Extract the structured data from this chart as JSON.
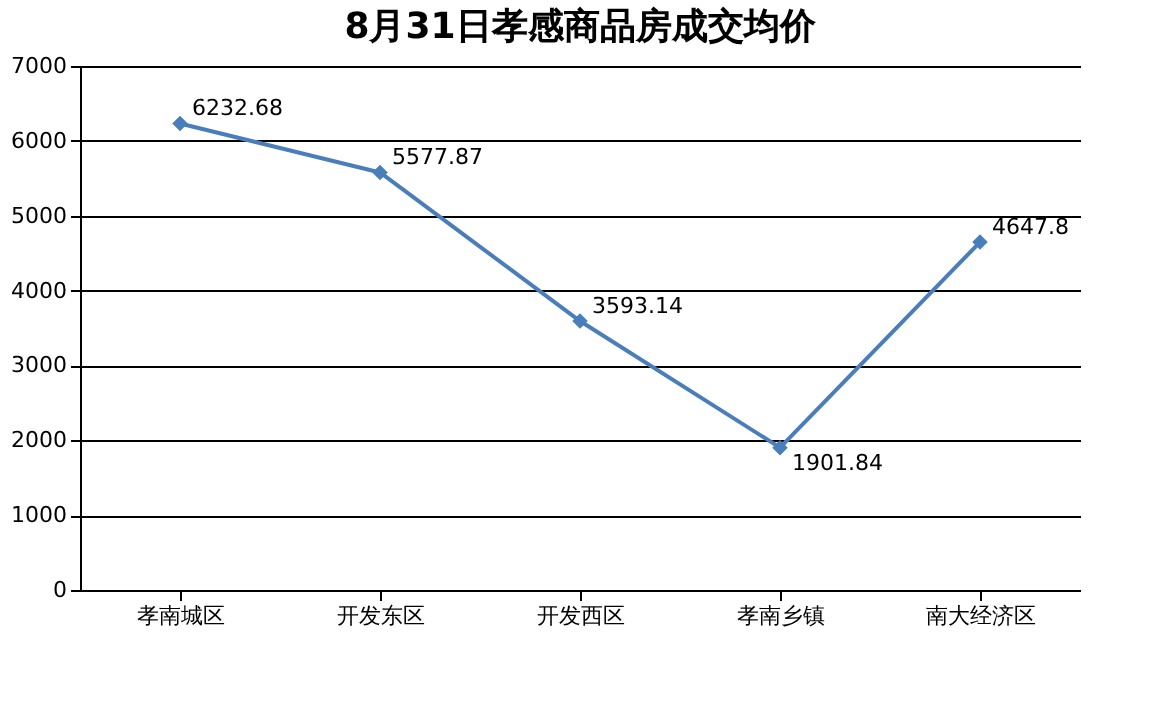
{
  "chart_data": {
    "type": "line",
    "title": "8月31日孝感商品房成交均价",
    "categories": [
      "孝南城区",
      "开发东区",
      "开发西区",
      "孝南乡镇",
      "南大经济区"
    ],
    "series": [
      {
        "color": "#4a7ebb",
        "values": [
          6232.68,
          5577.87,
          3593.14,
          1901.84,
          4647.8
        ]
      }
    ],
    "ylim": [
      0,
      7000
    ],
    "yticks": [
      0,
      1000,
      2000,
      3000,
      4000,
      5000,
      6000,
      7000
    ],
    "grid": "y",
    "marker": "diamond",
    "line_style": "solid",
    "data_labels": true
  }
}
